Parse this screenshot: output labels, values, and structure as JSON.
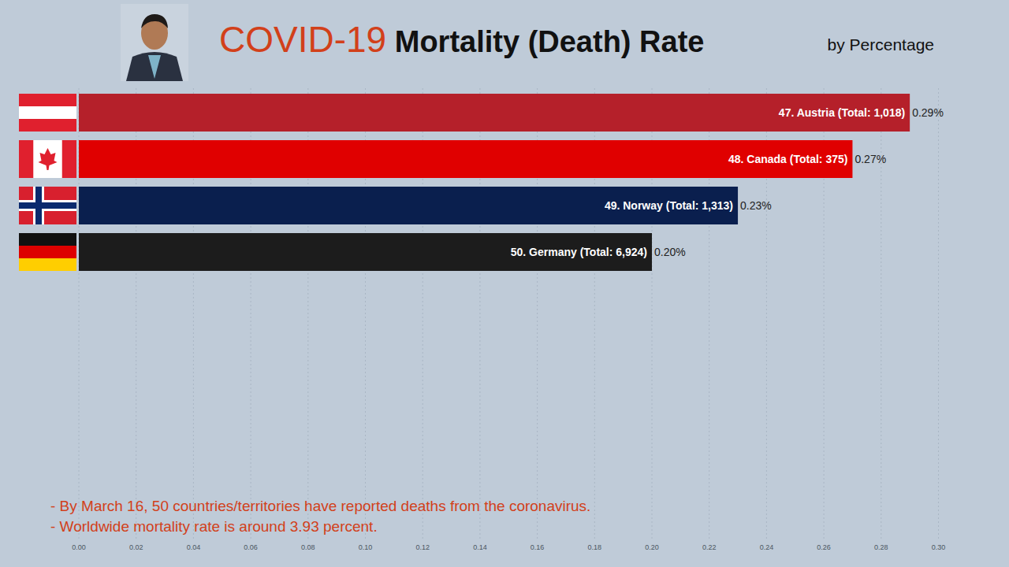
{
  "chart_data": {
    "type": "bar",
    "orientation": "horizontal",
    "title": "COVID-19 Mortality (Death) Rate",
    "subtitle": "by Percentage",
    "categories": [
      "47. Austria (Total: 1,018)",
      "48. Canada (Total: 375)",
      "49. Norway (Total: 1,313)",
      "50. Germany (Total: 6,924)"
    ],
    "values": [
      0.29,
      0.27,
      0.23,
      0.2
    ],
    "value_labels": [
      "0.29%",
      "0.27%",
      "0.23%",
      "0.20%"
    ],
    "data_labels": true,
    "colors": [
      "#b5202a",
      "#e00000",
      "#0a1f4e",
      "#1c1c1c"
    ],
    "xlim": [
      0,
      0.3
    ],
    "xticks": [
      {
        "value": 0,
        "label": "0.00"
      },
      {
        "value": 0.02,
        "label": "0.02"
      },
      {
        "value": 0.04,
        "label": "0.04"
      },
      {
        "value": 0.06,
        "label": "0.06"
      },
      {
        "value": 0.08,
        "label": "0.08"
      },
      {
        "value": 0.1,
        "label": "0.10"
      },
      {
        "value": 0.12,
        "label": "0.12"
      },
      {
        "value": 0.14,
        "label": "0.14"
      },
      {
        "value": 0.16,
        "label": "0.16"
      },
      {
        "value": 0.18,
        "label": "0.18"
      },
      {
        "value": 0.2,
        "label": "0.20"
      },
      {
        "value": 0.22,
        "label": "0.22"
      },
      {
        "value": 0.24,
        "label": "0.24"
      },
      {
        "value": 0.26,
        "label": "0.26"
      },
      {
        "value": 0.28,
        "label": "0.28"
      },
      {
        "value": 0.3,
        "label": "0.30"
      }
    ],
    "grid": true,
    "annotations": [
      "- By March 16, 50 countries/territories have reported deaths from the coronavirus.",
      "- Worldwide mortality rate is around 3.93 percent."
    ]
  }
}
